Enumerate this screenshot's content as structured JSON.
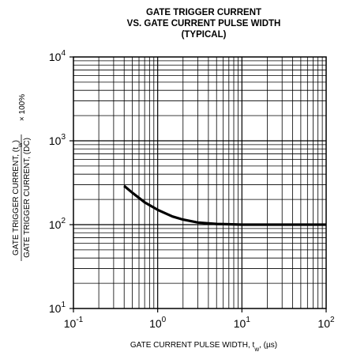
{
  "chart_data": {
    "type": "line",
    "title": [
      "GATE TRIGGER CURRENT",
      "VS. GATE CURRENT PULSE WIDTH",
      "(TYPICAL)"
    ],
    "xlabel": "GATE CURRENT PULSE WIDTH, tw, (µs)",
    "xlabel_parts": {
      "main": "GATE CURRENT PULSE WIDTH, t",
      "sub": "w",
      "tail": ", (µs)"
    },
    "ylabel_parts": {
      "numerator": "GATE TRIGGER CURRENT, (t",
      "numerator_sub": "w",
      "numerator_tail": ")",
      "denominator": "GATE TRIGGER CURRENT, (DC)",
      "factor": "× 100%"
    },
    "x_scale": "log",
    "y_scale": "log",
    "xlim": [
      0.1,
      100
    ],
    "ylim": [
      10,
      10000
    ],
    "x_ticks": [
      {
        "base": "10",
        "exp": "-1",
        "value": 0.1
      },
      {
        "base": "10",
        "exp": "0",
        "value": 1
      },
      {
        "base": "10",
        "exp": "1",
        "value": 10
      },
      {
        "base": "10",
        "exp": "2",
        "value": 100
      }
    ],
    "y_ticks": [
      {
        "base": "10",
        "exp": "1",
        "value": 10
      },
      {
        "base": "10",
        "exp": "2",
        "value": 100
      },
      {
        "base": "10",
        "exp": "3",
        "value": 1000
      },
      {
        "base": "10",
        "exp": "4",
        "value": 10000
      }
    ],
    "grid": true,
    "series": [
      {
        "color": "#000000",
        "x": [
          0.4,
          0.5,
          0.7,
          1.0,
          1.5,
          2,
          3,
          5,
          7,
          10,
          20,
          50,
          100
        ],
        "y": [
          290,
          240,
          185,
          150,
          125,
          115,
          106,
          102,
          101,
          100,
          100,
          100,
          100
        ]
      }
    ]
  }
}
